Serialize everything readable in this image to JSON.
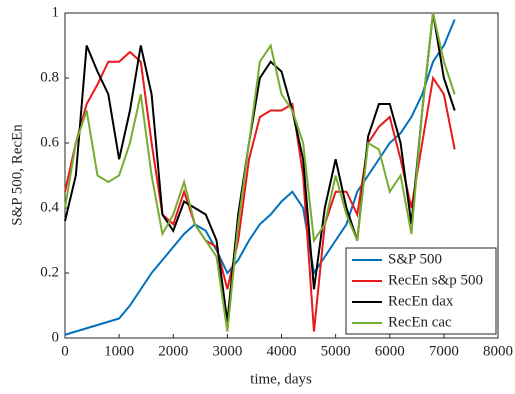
{
  "chart_data": {
    "type": "line",
    "x_label": "time, days",
    "y_label": "S&P 500, RecEn",
    "x": [
      0,
      200,
      400,
      600,
      800,
      1000,
      1200,
      1400,
      1600,
      1800,
      2000,
      2200,
      2400,
      2600,
      2800,
      3000,
      3200,
      3400,
      3600,
      3800,
      4000,
      4200,
      4400,
      4600,
      4800,
      5000,
      5200,
      5400,
      5600,
      5800,
      6000,
      6200,
      6400,
      6600,
      6800,
      7000,
      7200
    ],
    "series": [
      {
        "name": "S&P 500",
        "color": "#0072bd",
        "values": [
          0.01,
          0.02,
          0.03,
          0.04,
          0.05,
          0.06,
          0.1,
          0.15,
          0.2,
          0.24,
          0.28,
          0.32,
          0.35,
          0.33,
          0.27,
          0.2,
          0.24,
          0.3,
          0.35,
          0.38,
          0.42,
          0.45,
          0.4,
          0.2,
          0.25,
          0.3,
          0.35,
          0.45,
          0.5,
          0.55,
          0.6,
          0.63,
          0.68,
          0.75,
          0.85,
          0.9,
          0.98
        ]
      },
      {
        "name": "RecEn s&p 500",
        "color": "#e8191c",
        "values": [
          0.45,
          0.6,
          0.72,
          0.78,
          0.85,
          0.85,
          0.88,
          0.85,
          0.6,
          0.38,
          0.35,
          0.45,
          0.35,
          0.3,
          0.28,
          0.15,
          0.3,
          0.55,
          0.68,
          0.7,
          0.7,
          0.72,
          0.5,
          0.02,
          0.35,
          0.45,
          0.45,
          0.38,
          0.6,
          0.65,
          0.68,
          0.55,
          0.4,
          0.6,
          0.8,
          0.75,
          0.58
        ]
      },
      {
        "name": "RecEn dax",
        "color": "#000000",
        "values": [
          0.36,
          0.5,
          0.9,
          0.82,
          0.75,
          0.55,
          0.7,
          0.9,
          0.75,
          0.38,
          0.33,
          0.42,
          0.4,
          0.38,
          0.3,
          0.05,
          0.38,
          0.6,
          0.8,
          0.85,
          0.82,
          0.7,
          0.55,
          0.15,
          0.4,
          0.55,
          0.4,
          0.3,
          0.62,
          0.72,
          0.72,
          0.6,
          0.35,
          0.7,
          1.0,
          0.8,
          0.7
        ]
      },
      {
        "name": "RecEn cac",
        "color": "#77ac30",
        "values": [
          0.4,
          0.6,
          0.7,
          0.5,
          0.48,
          0.5,
          0.6,
          0.75,
          0.5,
          0.32,
          0.38,
          0.48,
          0.35,
          0.3,
          0.25,
          0.02,
          0.35,
          0.6,
          0.85,
          0.9,
          0.75,
          0.7,
          0.6,
          0.3,
          0.35,
          0.5,
          0.38,
          0.3,
          0.6,
          0.58,
          0.45,
          0.5,
          0.32,
          0.7,
          1.0,
          0.85,
          0.75
        ]
      }
    ],
    "xlim": [
      0,
      8000
    ],
    "xticks": [
      0,
      1000,
      2000,
      3000,
      4000,
      5000,
      6000,
      7000,
      8000
    ],
    "ylim": [
      0,
      1
    ],
    "yticks": [
      0,
      0.2,
      0.4,
      0.6,
      0.8,
      1
    ],
    "grid": false,
    "legend": "lower right"
  }
}
